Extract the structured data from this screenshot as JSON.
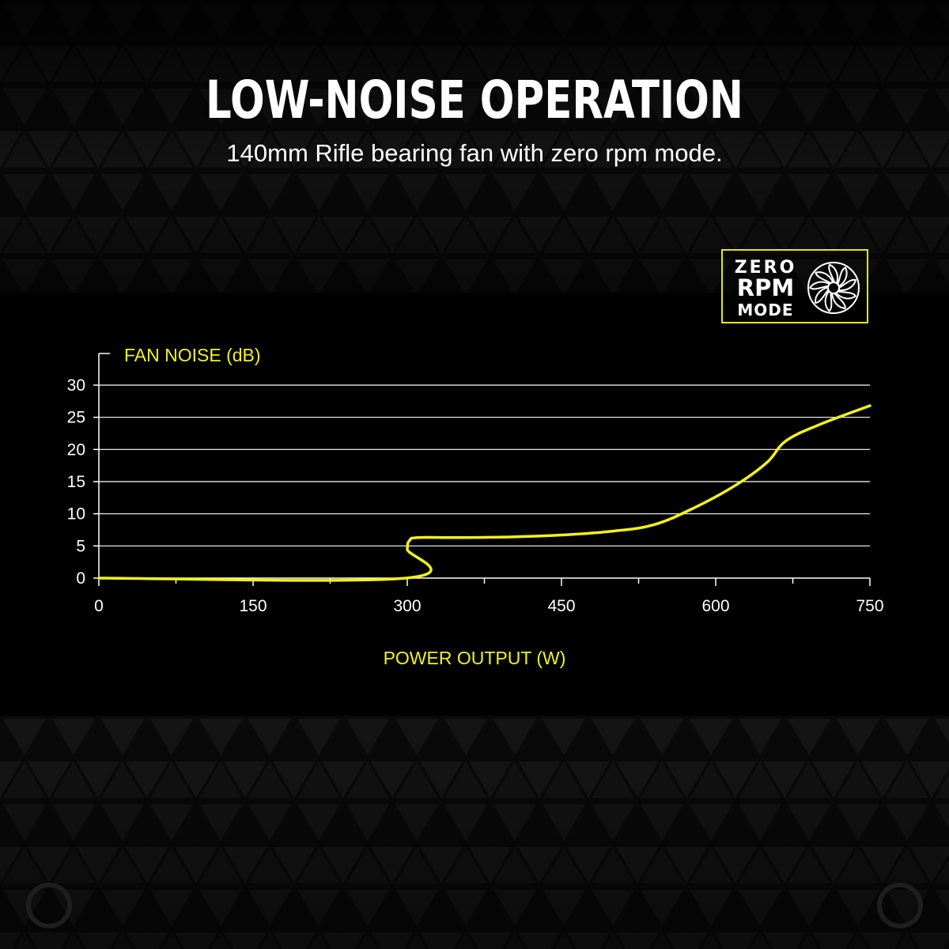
{
  "header": {
    "title": "LOW-NOISE OPERATION",
    "subtitle": "140mm Rifle bearing fan with zero rpm mode."
  },
  "badge": {
    "line1": "ZERO",
    "line2": "RPM",
    "line3": "MODE",
    "icon": "fan-icon",
    "border_color": "#e6e619"
  },
  "colors": {
    "accent": "#f2f21a",
    "background": "#000000",
    "text": "#ffffff"
  },
  "chart_data": {
    "type": "line",
    "ylabel": "FAN NOISE (dB)",
    "xlabel": "POWER OUTPUT (W)",
    "xlim": [
      0,
      750
    ],
    "ylim": [
      0,
      30
    ],
    "xticks": [
      0,
      150,
      300,
      450,
      600,
      750
    ],
    "yticks": [
      0,
      5,
      10,
      15,
      20,
      25,
      30
    ],
    "grid": true,
    "series": [
      {
        "color": "#f2f21a",
        "x": [
          0,
          299,
          300,
          302,
          310,
          350,
          400,
          450,
          500,
          540,
          580,
          620,
          650,
          668,
          700,
          750
        ],
        "y": [
          0,
          0,
          4.5,
          5.8,
          6.3,
          6.3,
          6.4,
          6.7,
          7.3,
          8.3,
          11.0,
          14.5,
          18.0,
          21.3,
          23.8,
          26.8
        ]
      }
    ]
  }
}
